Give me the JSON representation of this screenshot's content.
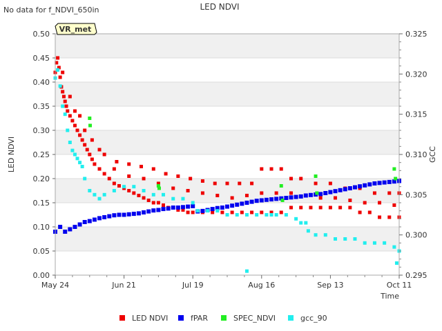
{
  "chart_data": {
    "type": "scatter",
    "title": "LED NDVI",
    "note": "No data for f_NDVI_650in",
    "badge": "VR_met",
    "xlabel": "Time",
    "ylabel_left": "LED NDVI",
    "ylabel_right": "GCC",
    "x_unit": "days since May 24",
    "xlim": [
      0,
      140
    ],
    "ylim_left": [
      0.0,
      0.5
    ],
    "ylim_right": [
      0.295,
      0.325
    ],
    "x_ticks": [
      {
        "label": "May 24",
        "x": 0
      },
      {
        "label": "Jun 21",
        "x": 28
      },
      {
        "label": "Jul 19",
        "x": 56
      },
      {
        "label": "Aug 16",
        "x": 84
      },
      {
        "label": "Sep 13",
        "x": 112
      },
      {
        "label": "Oct 11",
        "x": 140
      }
    ],
    "y_ticks_left": [
      "0.00",
      "0.05",
      "0.10",
      "0.15",
      "0.20",
      "0.25",
      "0.30",
      "0.35",
      "0.40",
      "0.45",
      "0.50"
    ],
    "y_ticks_right": [
      "0.295",
      "0.300",
      "0.305",
      "0.310",
      "0.315",
      "0.320",
      "0.325"
    ],
    "colors": {
      "LED NDVI": "#ee0000",
      "fPAR": "#0000ee",
      "SPEC_NDVI": "#22ee22",
      "gcc_90": "#22eeee",
      "band": "#f0f0f0"
    },
    "series": [
      {
        "name": "LED NDVI",
        "axis": "left",
        "marker": "square",
        "points": [
          [
            0,
            0.42
          ],
          [
            0.5,
            0.44
          ],
          [
            1,
            0.45
          ],
          [
            1.5,
            0.43
          ],
          [
            2,
            0.41
          ],
          [
            2.5,
            0.39
          ],
          [
            3,
            0.38
          ],
          [
            3.5,
            0.37
          ],
          [
            4,
            0.36
          ],
          [
            4.5,
            0.35
          ],
          [
            5,
            0.34
          ],
          [
            6,
            0.33
          ],
          [
            7,
            0.32
          ],
          [
            8,
            0.31
          ],
          [
            9,
            0.3
          ],
          [
            10,
            0.29
          ],
          [
            11,
            0.28
          ],
          [
            12,
            0.27
          ],
          [
            13,
            0.26
          ],
          [
            14,
            0.25
          ],
          [
            15,
            0.24
          ],
          [
            16,
            0.23
          ],
          [
            18,
            0.22
          ],
          [
            20,
            0.21
          ],
          [
            22,
            0.2
          ],
          [
            24,
            0.19
          ],
          [
            26,
            0.185
          ],
          [
            28,
            0.18
          ],
          [
            30,
            0.175
          ],
          [
            32,
            0.17
          ],
          [
            34,
            0.165
          ],
          [
            36,
            0.16
          ],
          [
            38,
            0.155
          ],
          [
            40,
            0.15
          ],
          [
            42,
            0.15
          ],
          [
            44,
            0.145
          ],
          [
            46,
            0.14
          ],
          [
            48,
            0.14
          ],
          [
            50,
            0.135
          ],
          [
            52,
            0.135
          ],
          [
            54,
            0.13
          ],
          [
            56,
            0.13
          ],
          [
            60,
            0.13
          ],
          [
            64,
            0.13
          ],
          [
            68,
            0.13
          ],
          [
            72,
            0.13
          ],
          [
            76,
            0.13
          ],
          [
            80,
            0.13
          ],
          [
            84,
            0.13
          ],
          [
            88,
            0.13
          ],
          [
            92,
            0.13
          ],
          [
            96,
            0.14
          ],
          [
            100,
            0.14
          ],
          [
            104,
            0.14
          ],
          [
            108,
            0.14
          ],
          [
            112,
            0.14
          ],
          [
            116,
            0.14
          ],
          [
            120,
            0.14
          ],
          [
            124,
            0.13
          ],
          [
            128,
            0.13
          ],
          [
            132,
            0.12
          ],
          [
            136,
            0.12
          ],
          [
            140,
            0.12
          ],
          [
            3,
            0.42
          ],
          [
            6,
            0.37
          ],
          [
            10,
            0.33
          ],
          [
            15,
            0.28
          ],
          [
            20,
            0.25
          ],
          [
            25,
            0.235
          ],
          [
            30,
            0.23
          ],
          [
            35,
            0.225
          ],
          [
            40,
            0.22
          ],
          [
            45,
            0.21
          ],
          [
            50,
            0.205
          ],
          [
            55,
            0.2
          ],
          [
            60,
            0.195
          ],
          [
            65,
            0.19
          ],
          [
            70,
            0.19
          ],
          [
            75,
            0.19
          ],
          [
            80,
            0.19
          ],
          [
            84,
            0.22
          ],
          [
            88,
            0.22
          ],
          [
            92,
            0.22
          ],
          [
            96,
            0.2
          ],
          [
            100,
            0.2
          ],
          [
            106,
            0.19
          ],
          [
            112,
            0.19
          ],
          [
            118,
            0.18
          ],
          [
            124,
            0.18
          ],
          [
            130,
            0.17
          ],
          [
            136,
            0.17
          ],
          [
            140,
            0.17
          ],
          [
            8,
            0.34
          ],
          [
            12,
            0.3
          ],
          [
            18,
            0.26
          ],
          [
            24,
            0.22
          ],
          [
            30,
            0.205
          ],
          [
            36,
            0.2
          ],
          [
            42,
            0.19
          ],
          [
            48,
            0.18
          ],
          [
            54,
            0.175
          ],
          [
            60,
            0.17
          ],
          [
            66,
            0.165
          ],
          [
            72,
            0.16
          ],
          [
            78,
            0.165
          ],
          [
            84,
            0.17
          ],
          [
            90,
            0.17
          ],
          [
            96,
            0.17
          ],
          [
            102,
            0.165
          ],
          [
            108,
            0.16
          ],
          [
            114,
            0.16
          ],
          [
            120,
            0.155
          ],
          [
            126,
            0.15
          ],
          [
            132,
            0.15
          ],
          [
            138,
            0.145
          ]
        ]
      },
      {
        "name": "fPAR",
        "axis": "left",
        "marker": "square",
        "points": [
          [
            0,
            0.09
          ],
          [
            2,
            0.1
          ],
          [
            4,
            0.09
          ],
          [
            6,
            0.095
          ],
          [
            8,
            0.1
          ],
          [
            10,
            0.105
          ],
          [
            12,
            0.11
          ],
          [
            14,
            0.112
          ],
          [
            16,
            0.115
          ],
          [
            18,
            0.118
          ],
          [
            20,
            0.12
          ],
          [
            22,
            0.122
          ],
          [
            24,
            0.124
          ],
          [
            26,
            0.125
          ],
          [
            28,
            0.125
          ],
          [
            30,
            0.126
          ],
          [
            32,
            0.127
          ],
          [
            34,
            0.128
          ],
          [
            36,
            0.13
          ],
          [
            38,
            0.132
          ],
          [
            40,
            0.134
          ],
          [
            42,
            0.135
          ],
          [
            44,
            0.137
          ],
          [
            46,
            0.138
          ],
          [
            48,
            0.14
          ],
          [
            50,
            0.14
          ],
          [
            52,
            0.141
          ],
          [
            54,
            0.142
          ],
          [
            56,
            0.143
          ],
          [
            58,
            0.132
          ],
          [
            60,
            0.133
          ],
          [
            62,
            0.135
          ],
          [
            64,
            0.137
          ],
          [
            66,
            0.139
          ],
          [
            68,
            0.14
          ],
          [
            70,
            0.142
          ],
          [
            72,
            0.144
          ],
          [
            74,
            0.146
          ],
          [
            76,
            0.148
          ],
          [
            78,
            0.15
          ],
          [
            80,
            0.152
          ],
          [
            82,
            0.154
          ],
          [
            84,
            0.155
          ],
          [
            86,
            0.156
          ],
          [
            88,
            0.157
          ],
          [
            90,
            0.158
          ],
          [
            92,
            0.159
          ],
          [
            94,
            0.16
          ],
          [
            96,
            0.161
          ],
          [
            98,
            0.162
          ],
          [
            100,
            0.163
          ],
          [
            102,
            0.165
          ],
          [
            104,
            0.166
          ],
          [
            106,
            0.167
          ],
          [
            108,
            0.168
          ],
          [
            110,
            0.17
          ],
          [
            112,
            0.172
          ],
          [
            114,
            0.174
          ],
          [
            116,
            0.176
          ],
          [
            118,
            0.178
          ],
          [
            120,
            0.18
          ],
          [
            122,
            0.182
          ],
          [
            124,
            0.184
          ],
          [
            126,
            0.186
          ],
          [
            128,
            0.188
          ],
          [
            130,
            0.19
          ],
          [
            132,
            0.191
          ],
          [
            134,
            0.192
          ],
          [
            136,
            0.193
          ],
          [
            138,
            0.194
          ],
          [
            140,
            0.195
          ]
        ]
      },
      {
        "name": "SPEC_NDVI",
        "axis": "left",
        "marker": "square",
        "points": [
          [
            14,
            0.325
          ],
          [
            14.2,
            0.31
          ],
          [
            42,
            0.185
          ],
          [
            42.3,
            0.18
          ],
          [
            92,
            0.185
          ],
          [
            92.5,
            0.155
          ],
          [
            106,
            0.205
          ],
          [
            106.5,
            0.17
          ],
          [
            138,
            0.22
          ],
          [
            138.5,
            0.2
          ]
        ]
      },
      {
        "name": "gcc_90",
        "axis": "right",
        "marker": "square",
        "points": [
          [
            0,
            0.3195
          ],
          [
            1,
            0.3205
          ],
          [
            2,
            0.3185
          ],
          [
            3,
            0.316
          ],
          [
            4,
            0.315
          ],
          [
            5,
            0.313
          ],
          [
            6,
            0.3115
          ],
          [
            7,
            0.3105
          ],
          [
            8,
            0.31
          ],
          [
            9,
            0.3095
          ],
          [
            10,
            0.309
          ],
          [
            11,
            0.3085
          ],
          [
            12,
            0.307
          ],
          [
            14,
            0.3055
          ],
          [
            16,
            0.305
          ],
          [
            18,
            0.3045
          ],
          [
            20,
            0.305
          ],
          [
            24,
            0.3055
          ],
          [
            28,
            0.306
          ],
          [
            32,
            0.306
          ],
          [
            36,
            0.3055
          ],
          [
            40,
            0.305
          ],
          [
            44,
            0.305
          ],
          [
            48,
            0.3045
          ],
          [
            52,
            0.3045
          ],
          [
            56,
            0.304
          ],
          [
            58,
            0.303
          ],
          [
            62,
            0.303
          ],
          [
            66,
            0.303
          ],
          [
            70,
            0.3025
          ],
          [
            74,
            0.3025
          ],
          [
            78,
            0.3025
          ],
          [
            82,
            0.3025
          ],
          [
            86,
            0.3025
          ],
          [
            88,
            0.3025
          ],
          [
            90,
            0.3025
          ],
          [
            94,
            0.3025
          ],
          [
            98,
            0.302
          ],
          [
            100,
            0.3015
          ],
          [
            102,
            0.3015
          ],
          [
            103,
            0.3005
          ],
          [
            106,
            0.3
          ],
          [
            110,
            0.3
          ],
          [
            114,
            0.2995
          ],
          [
            118,
            0.2995
          ],
          [
            122,
            0.2995
          ],
          [
            126,
            0.299
          ],
          [
            130,
            0.299
          ],
          [
            134,
            0.299
          ],
          [
            138,
            0.2985
          ],
          [
            140,
            0.298
          ],
          [
            139,
            0.2965
          ],
          [
            78,
            0.2955
          ]
        ]
      }
    ]
  }
}
